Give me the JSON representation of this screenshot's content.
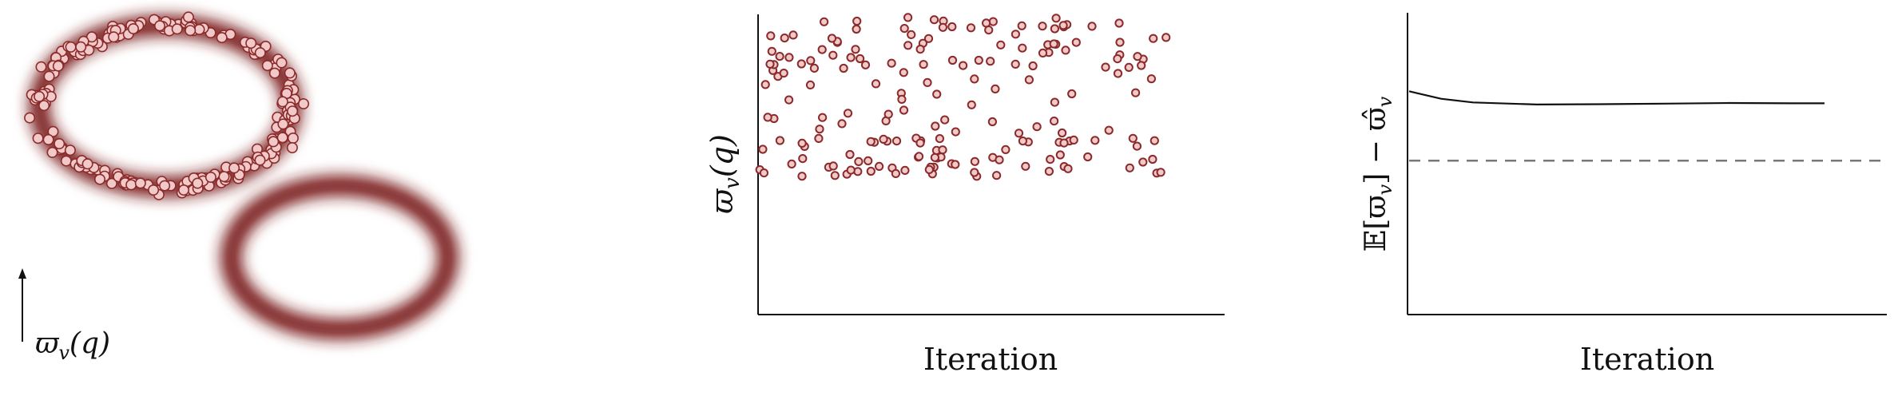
{
  "colors": {
    "ring": "#7a1b1b",
    "marker_fill": "#f2c9c9",
    "marker_stroke": "#8a2a2a",
    "axis": "#111111",
    "dashed": "#777777",
    "line": "#111111"
  },
  "chart_data": [
    {
      "type": "scatter",
      "title": "",
      "xlabel": "",
      "ylabel": "",
      "annotation": "ϖ",
      "annotation_sub": "v",
      "annotation_tail": "(q)",
      "regions": [
        {
          "name": "",
          "cx": 0,
          "cy": 0,
          "rx": 1,
          "ry": 0.64,
          "has_samples": true
        },
        {
          "name": "",
          "cx": 1.38,
          "cy": -1.2,
          "rx": 0.86,
          "ry": 0.57,
          "has_samples": false
        }
      ],
      "sample_count": 230
    },
    {
      "type": "scatter",
      "title": "",
      "xlabel": "Iteration",
      "ylabel": "ϖ",
      "ylabel_sub": "v",
      "ylabel_tail": "(q)",
      "xlim": [
        0,
        150
      ],
      "ylim": [
        0,
        10
      ],
      "upper_band": [
        8.2,
        10
      ],
      "lower_band": [
        4.6,
        5.9
      ],
      "n_points": 190
    },
    {
      "type": "line",
      "title": "",
      "xlabel": "Iteration",
      "ylabel": "𝔼[ϖ",
      "ylabel_sub": "v",
      "ylabel_tail": "] − ϖ̂",
      "ylabel_tail_sub": "v",
      "xlim": [
        0,
        150
      ],
      "ylim": [
        0,
        10
      ],
      "series": [
        {
          "name": "",
          "x": [
            0,
            10,
            20,
            40,
            60,
            80,
            100,
            120,
            130
          ],
          "y": [
            7.4,
            7.15,
            7.03,
            6.96,
            6.97,
            6.99,
            7.01,
            7.0,
            7.0
          ]
        }
      ],
      "reference_line": 5.1
    }
  ]
}
